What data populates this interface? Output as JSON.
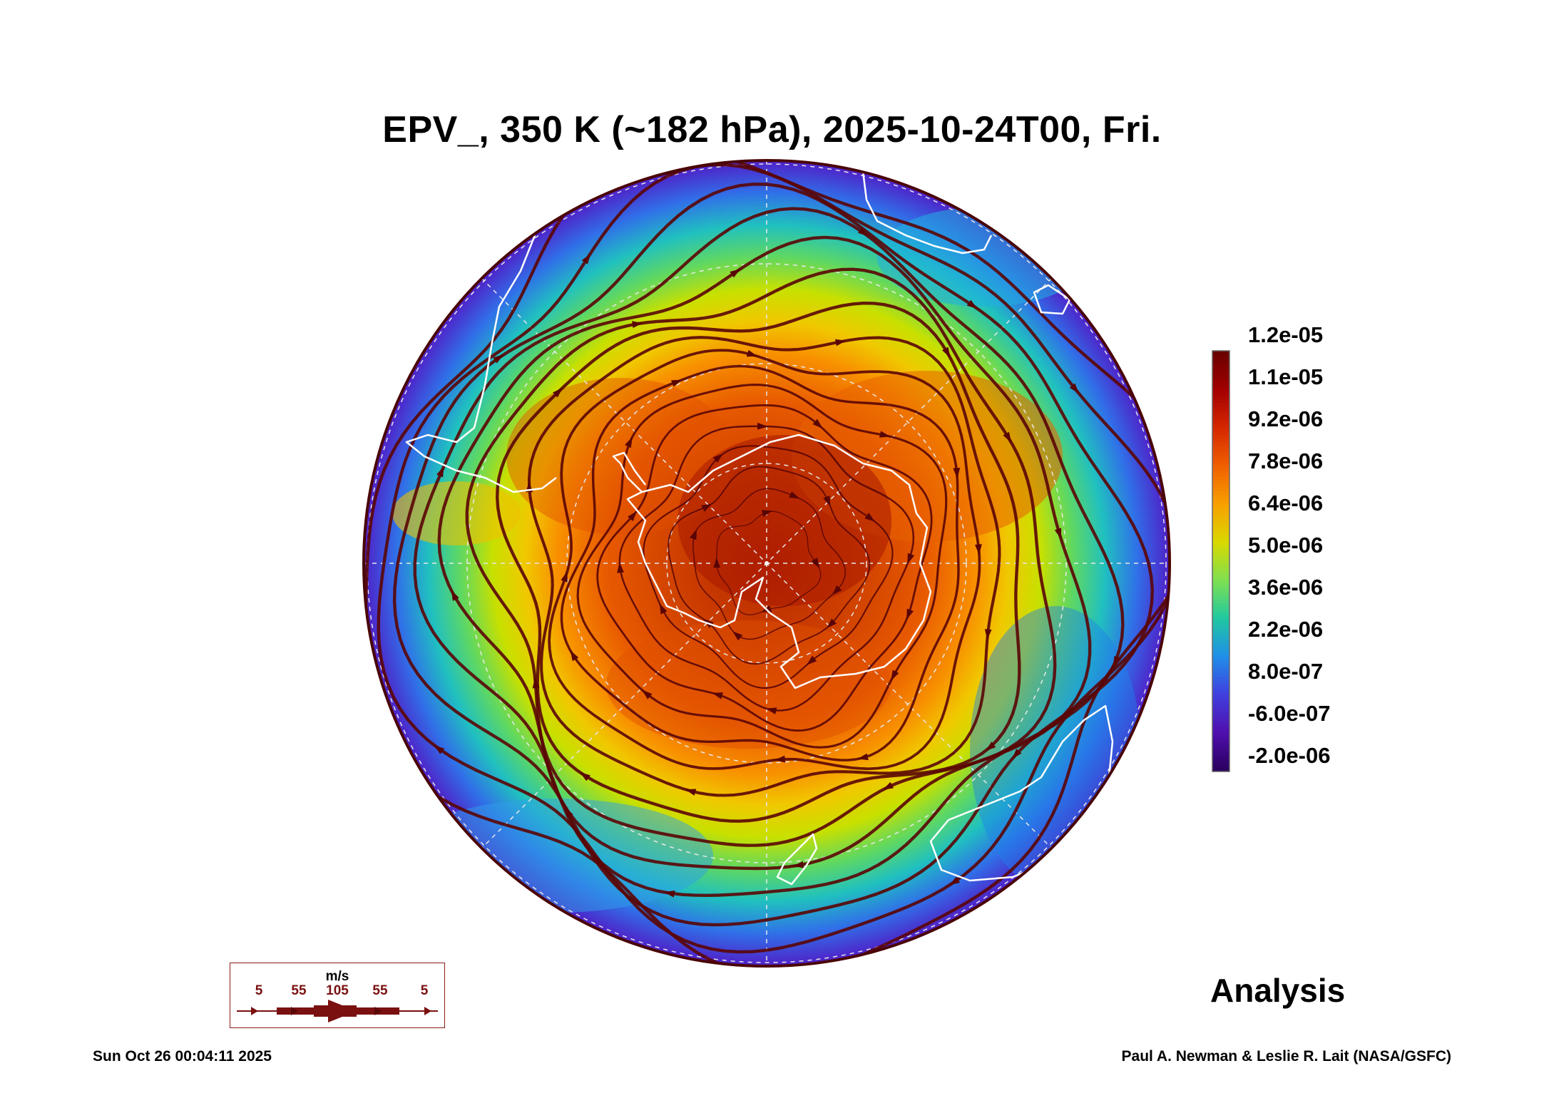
{
  "title": "EPV_, 350 K (~182 hPa), 2025-10-24T00, Fri.",
  "colorbar": {
    "ticks": [
      "1.2e-05",
      "1.1e-05",
      "9.2e-06",
      "7.8e-06",
      "6.4e-06",
      "5.0e-06",
      "3.6e-06",
      "2.2e-06",
      "8.0e-07",
      "-6.0e-07",
      "-2.0e-06"
    ],
    "colors": [
      "#6b0000",
      "#a30000",
      "#d62800",
      "#f06000",
      "#f8a000",
      "#d9d800",
      "#7fe050",
      "#20c8a0",
      "#2090e8",
      "#4040e0",
      "#5010b0",
      "#2a0060"
    ]
  },
  "wind_legend": {
    "unit": "m/s",
    "speeds": [
      "5",
      "55",
      "105",
      "55",
      "5"
    ]
  },
  "label_analysis": "Analysis",
  "timestamp": "Sun Oct 26 00:04:11 2025",
  "credit": "Paul A. Newman & Leslie R. Lait (NASA/GSFC)",
  "colors": {
    "streamline": "#5a0505",
    "coastline": "#ffffff",
    "grid": "#dddddd"
  }
}
